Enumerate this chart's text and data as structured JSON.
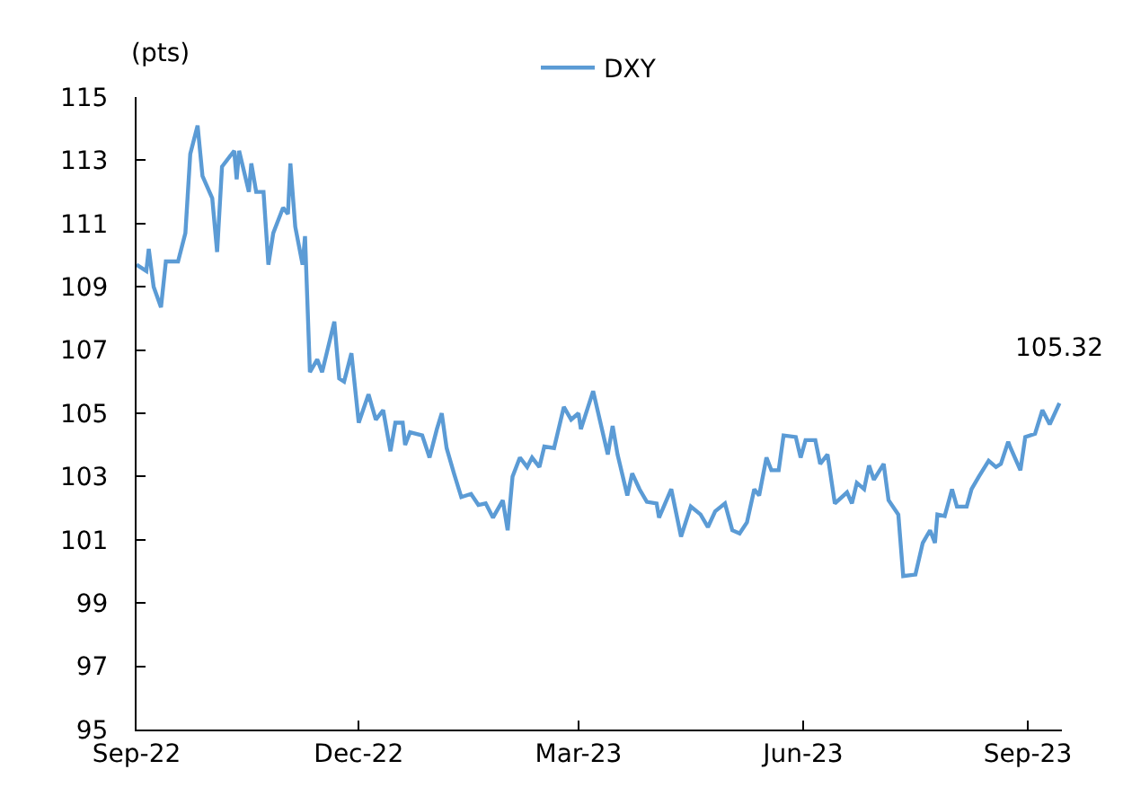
{
  "chart_data": {
    "type": "line",
    "ylabel": "(pts)",
    "x": [
      "2022-09-01",
      "2022-09-05",
      "2022-09-06",
      "2022-09-08",
      "2022-09-11",
      "2022-09-13",
      "2022-09-18",
      "2022-09-21",
      "2022-09-23",
      "2022-09-26",
      "2022-09-28",
      "2022-10-02",
      "2022-10-04",
      "2022-10-06",
      "2022-10-11",
      "2022-10-12",
      "2022-10-13",
      "2022-10-17",
      "2022-10-18",
      "2022-10-20",
      "2022-10-23",
      "2022-10-25",
      "2022-10-27",
      "2022-10-31",
      "2022-11-02",
      "2022-11-03",
      "2022-11-05",
      "2022-11-08",
      "2022-11-09",
      "2022-11-11",
      "2022-11-14",
      "2022-11-16",
      "2022-11-21",
      "2022-11-23",
      "2022-11-25",
      "2022-11-28",
      "2022-12-01",
      "2022-12-05",
      "2022-12-08",
      "2022-12-11",
      "2022-12-14",
      "2022-12-16",
      "2022-12-19",
      "2022-12-20",
      "2022-12-22",
      "2022-12-27",
      "2022-12-30",
      "2023-01-02",
      "2023-01-04",
      "2023-01-06",
      "2023-01-09",
      "2023-01-12",
      "2023-01-16",
      "2023-01-19",
      "2023-01-22",
      "2023-01-25",
      "2023-01-29",
      "2023-01-31",
      "2023-02-02",
      "2023-02-05",
      "2023-02-08",
      "2023-02-10",
      "2023-02-13",
      "2023-02-15",
      "2023-02-19",
      "2023-02-23",
      "2023-02-26",
      "2023-03-01",
      "2023-03-02",
      "2023-03-07",
      "2023-03-13",
      "2023-03-15",
      "2023-03-17",
      "2023-03-21",
      "2023-03-23",
      "2023-03-26",
      "2023-03-29",
      "2023-04-02",
      "2023-04-03",
      "2023-04-08",
      "2023-04-12",
      "2023-04-16",
      "2023-04-20",
      "2023-04-23",
      "2023-04-26",
      "2023-04-30",
      "2023-05-03",
      "2023-05-06",
      "2023-05-09",
      "2023-05-12",
      "2023-05-14",
      "2023-05-17",
      "2023-05-19",
      "2023-05-22",
      "2023-05-24",
      "2023-05-29",
      "2023-05-31",
      "2023-06-02",
      "2023-06-06",
      "2023-06-08",
      "2023-06-11",
      "2023-06-14",
      "2023-06-19",
      "2023-06-21",
      "2023-06-23",
      "2023-06-26",
      "2023-06-28",
      "2023-06-30",
      "2023-07-04",
      "2023-07-06",
      "2023-07-10",
      "2023-07-12",
      "2023-07-17",
      "2023-07-20",
      "2023-07-23",
      "2023-07-25",
      "2023-07-26",
      "2023-07-29",
      "2023-08-01",
      "2023-08-03",
      "2023-08-07",
      "2023-08-09",
      "2023-08-12",
      "2023-08-16",
      "2023-08-19",
      "2023-08-21",
      "2023-08-24",
      "2023-08-25",
      "2023-08-29",
      "2023-08-31",
      "2023-09-04",
      "2023-09-07",
      "2023-09-10",
      "2023-09-14"
    ],
    "series": [
      {
        "name": "DXY",
        "color": "#5b9bd5",
        "values": [
          109.7,
          109.5,
          110.2,
          109.0,
          108.35,
          109.8,
          109.8,
          110.7,
          113.2,
          114.1,
          112.5,
          111.8,
          110.1,
          112.8,
          113.3,
          112.4,
          113.3,
          112.0,
          112.9,
          112.0,
          112.0,
          109.7,
          110.7,
          111.5,
          111.3,
          112.9,
          110.9,
          109.7,
          110.6,
          106.3,
          106.7,
          106.3,
          107.9,
          106.1,
          106.0,
          106.9,
          104.7,
          105.6,
          104.8,
          105.1,
          103.8,
          104.7,
          104.7,
          104.0,
          104.4,
          104.3,
          103.6,
          104.5,
          105.0,
          103.9,
          103.1,
          102.35,
          102.45,
          102.1,
          102.15,
          101.7,
          102.25,
          101.3,
          103.0,
          103.6,
          103.3,
          103.6,
          103.3,
          103.95,
          103.9,
          105.2,
          104.8,
          105.0,
          104.5,
          105.7,
          103.7,
          104.6,
          103.7,
          102.4,
          103.1,
          102.6,
          102.2,
          102.15,
          101.7,
          102.6,
          101.1,
          102.05,
          101.8,
          101.4,
          101.9,
          102.15,
          101.3,
          101.2,
          101.55,
          102.6,
          102.4,
          103.6,
          103.2,
          103.2,
          104.3,
          104.25,
          103.6,
          104.15,
          104.15,
          103.4,
          103.7,
          102.15,
          102.5,
          102.15,
          102.8,
          102.6,
          103.35,
          102.9,
          103.4,
          102.25,
          101.8,
          99.85,
          99.9,
          100.9,
          101.3,
          100.9,
          101.8,
          101.75,
          102.6,
          102.05,
          102.05,
          102.6,
          103.0,
          103.5,
          103.3,
          103.4,
          104.1,
          103.9,
          103.2,
          104.25,
          104.35,
          105.1,
          104.65,
          105.32
        ]
      }
    ],
    "annotations": [
      {
        "text": "105.32",
        "x": "2023-09-14",
        "y": 105.32
      }
    ],
    "xlim": [
      "2022-09-01",
      "2023-09-15"
    ],
    "xticks": [
      {
        "value": "2022-09-01",
        "label": "Sep-22"
      },
      {
        "value": "2022-12-01",
        "label": "Dec-22"
      },
      {
        "value": "2023-03-01",
        "label": "Mar-23"
      },
      {
        "value": "2023-06-01",
        "label": "Jun-23"
      },
      {
        "value": "2023-09-01",
        "label": "Sep-23"
      }
    ],
    "ylim": [
      95,
      115
    ],
    "yticks": [
      95,
      97,
      99,
      101,
      103,
      105,
      107,
      109,
      111,
      113,
      115
    ],
    "grid": false,
    "legend": "top",
    "marker": "none",
    "line_style": "solid"
  }
}
